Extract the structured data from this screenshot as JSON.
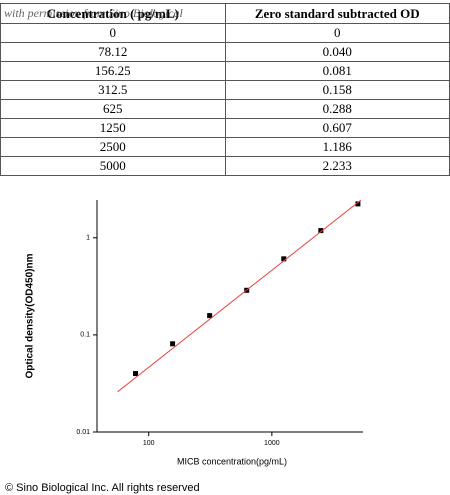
{
  "table": {
    "header": [
      "Concentration ( pg/mL)",
      "Zero standard subtracted OD"
    ],
    "rows": [
      [
        "0",
        "0"
      ],
      [
        "78.12",
        "0.040"
      ],
      [
        "156.25",
        "0.081"
      ],
      [
        "312.5",
        "0.158"
      ],
      [
        "625",
        "0.288"
      ],
      [
        "1250",
        "0.607"
      ],
      [
        "2500",
        "1.186"
      ],
      [
        "5000",
        "2.233"
      ]
    ]
  },
  "watermark": "with permission from Sino Biological",
  "chart_data": {
    "type": "scatter",
    "x_label": "MICB concentration(pg/mL)",
    "y_label": "Optical  density(OD450)nm",
    "xscale": "log",
    "yscale": "log",
    "xlim": [
      38,
      5500
    ],
    "ylim": [
      0.01,
      2.45
    ],
    "xticks": [
      100,
      1000
    ],
    "yticks": [
      0.01,
      0.1,
      1
    ],
    "series": [
      {
        "x": [
          78.12,
          156.25,
          312.5,
          625,
          1250,
          2500,
          5000
        ],
        "values": [
          0.04,
          0.081,
          0.158,
          0.288,
          0.607,
          1.186,
          2.233
        ],
        "color": "#000000",
        "draw": "points"
      },
      {
        "x": [
          56,
          5300
        ],
        "values": [
          0.026,
          2.45
        ],
        "color": "#e8413a",
        "draw": "line"
      }
    ]
  },
  "footer": "© Sino Biological Inc. All rights reserved"
}
